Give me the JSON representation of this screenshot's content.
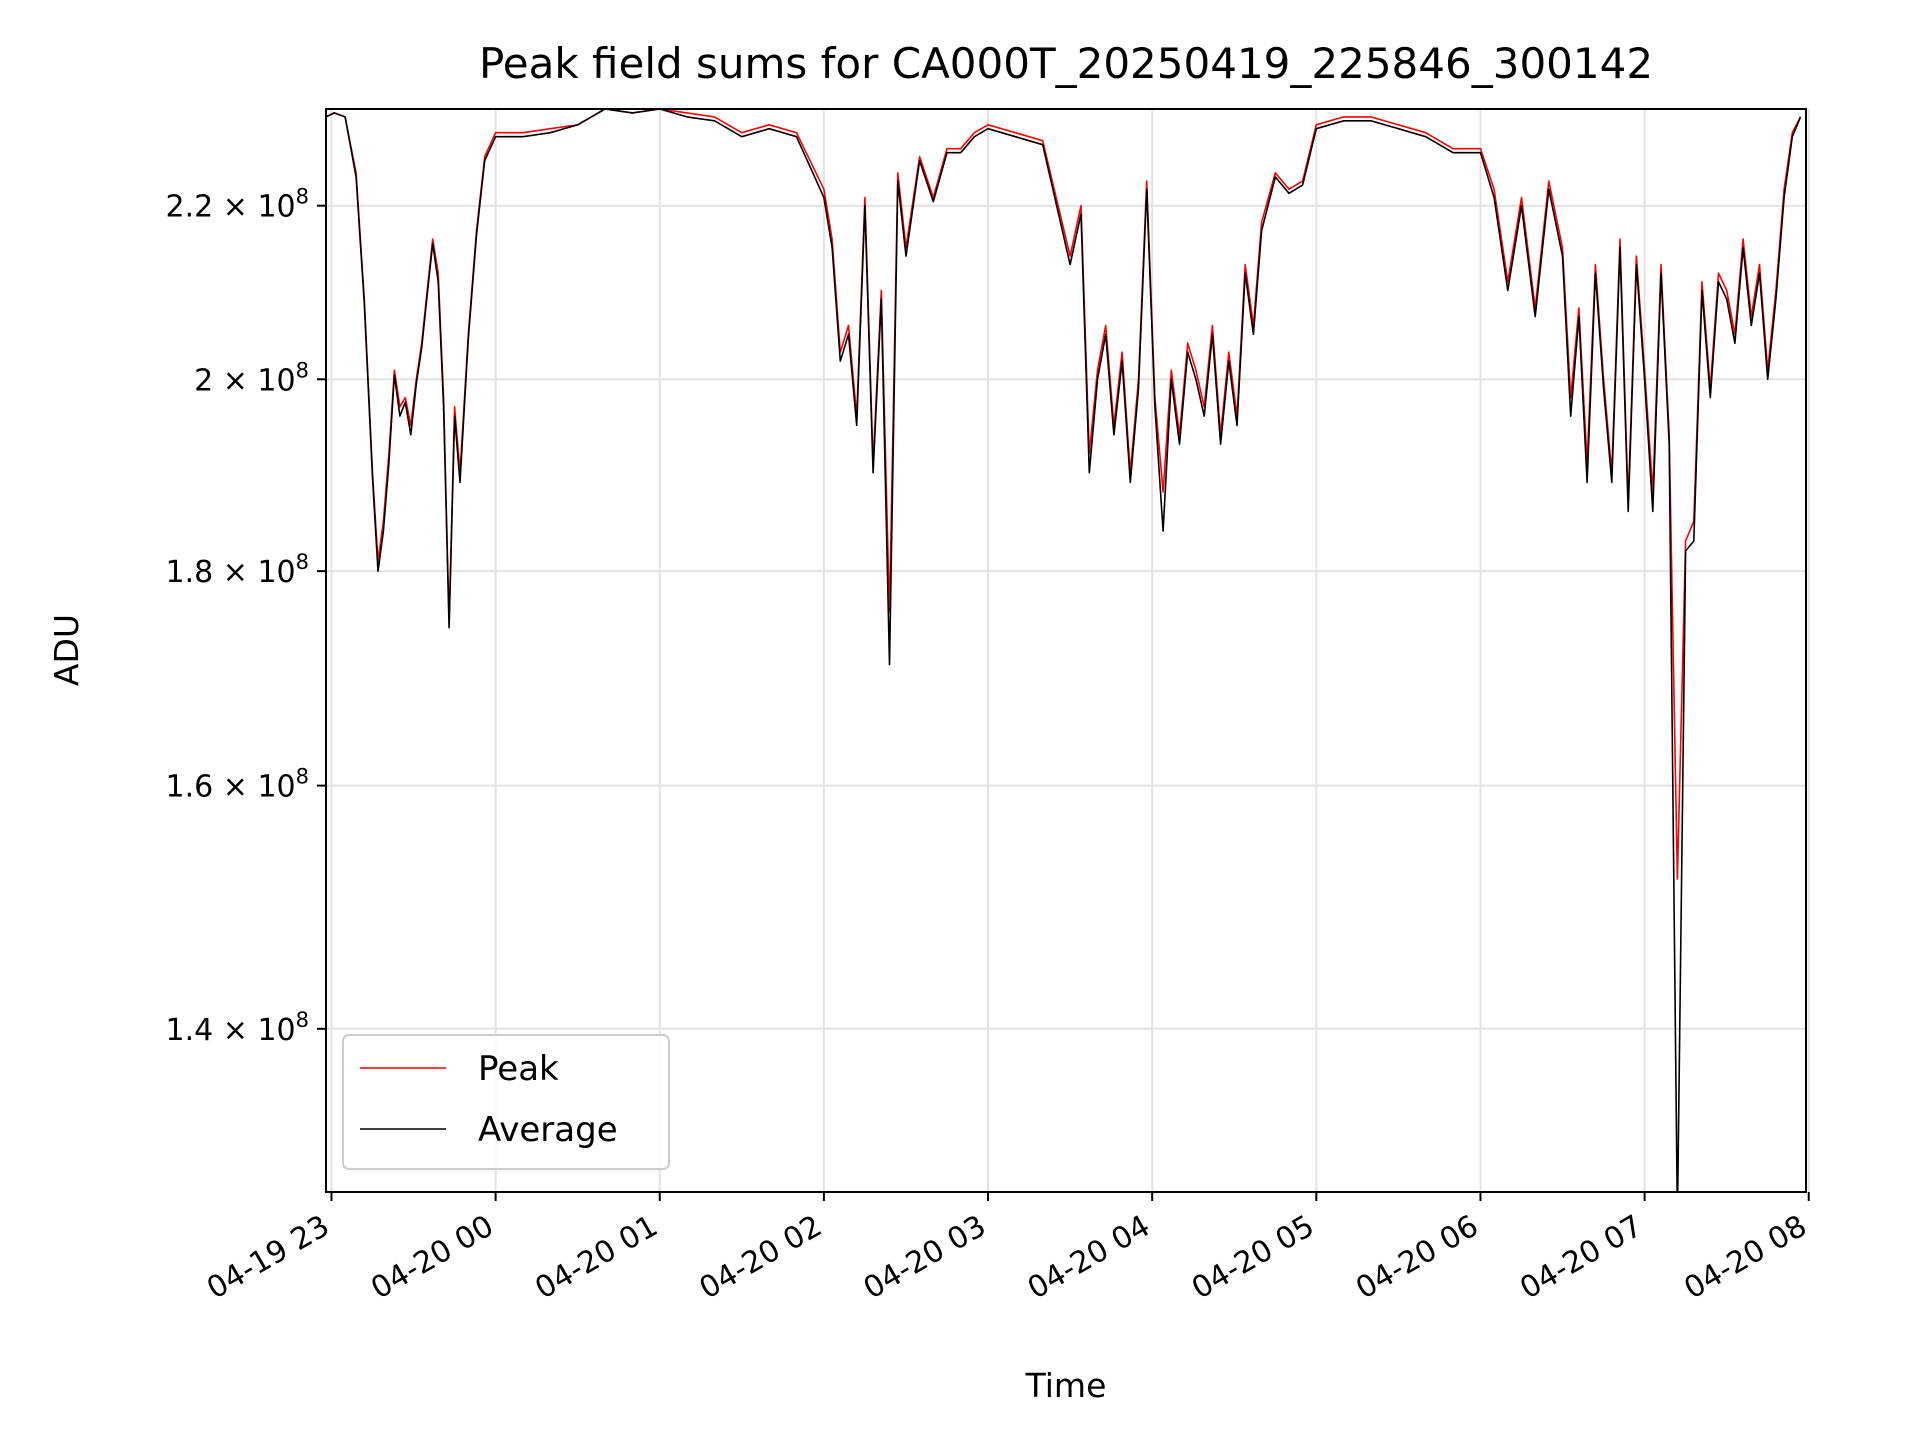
{
  "chart_data": {
    "type": "line",
    "title": "Peak field sums for CA000T_20250419_225846_300142",
    "xlabel": "Time",
    "ylabel": "ADU",
    "y_scale": "log",
    "ylim": [
      128000000,
      232000000
    ],
    "xlim": [
      "2025-04-19 22:58",
      "2025-04-20 07:59"
    ],
    "grid": true,
    "legend_position": "lower-left",
    "x_ticks": [
      {
        "value": "2025-04-19 23:00",
        "label": "04-19 23"
      },
      {
        "value": "2025-04-20 00:00",
        "label": "04-20 00"
      },
      {
        "value": "2025-04-20 01:00",
        "label": "04-20 01"
      },
      {
        "value": "2025-04-20 02:00",
        "label": "04-20 02"
      },
      {
        "value": "2025-04-20 03:00",
        "label": "04-20 03"
      },
      {
        "value": "2025-04-20 04:00",
        "label": "04-20 04"
      },
      {
        "value": "2025-04-20 05:00",
        "label": "04-20 05"
      },
      {
        "value": "2025-04-20 06:00",
        "label": "04-20 06"
      },
      {
        "value": "2025-04-20 07:00",
        "label": "04-20 07"
      },
      {
        "value": "2025-04-20 08:00",
        "label": "04-20 08"
      }
    ],
    "y_ticks": [
      {
        "value": 140000000,
        "mantissa": "1.4",
        "exp": "8"
      },
      {
        "value": 160000000,
        "mantissa": "1.6",
        "exp": "8"
      },
      {
        "value": 180000000,
        "mantissa": "1.8",
        "exp": "8"
      },
      {
        "value": 200000000,
        "mantissa": "2",
        "exp": "8"
      },
      {
        "value": 220000000,
        "mantissa": "2.2",
        "exp": "8"
      }
    ],
    "series": [
      {
        "name": "Peak",
        "color": "#ff0000",
        "x": [
          "2025-04-19 22:58",
          "2025-04-19 23:01",
          "2025-04-19 23:05",
          "2025-04-19 23:09",
          "2025-04-19 23:12",
          "2025-04-19 23:15",
          "2025-04-19 23:17",
          "2025-04-19 23:19",
          "2025-04-19 23:21",
          "2025-04-19 23:23",
          "2025-04-19 23:25",
          "2025-04-19 23:27",
          "2025-04-19 23:29",
          "2025-04-19 23:31",
          "2025-04-19 23:33",
          "2025-04-19 23:35",
          "2025-04-19 23:37",
          "2025-04-19 23:39",
          "2025-04-19 23:41",
          "2025-04-19 23:43",
          "2025-04-19 23:45",
          "2025-04-19 23:47",
          "2025-04-19 23:50",
          "2025-04-19 23:53",
          "2025-04-19 23:56",
          "2025-04-20 00:00",
          "2025-04-20 00:10",
          "2025-04-20 00:20",
          "2025-04-20 00:30",
          "2025-04-20 00:40",
          "2025-04-20 00:50",
          "2025-04-20 01:00",
          "2025-04-20 01:10",
          "2025-04-20 01:20",
          "2025-04-20 01:30",
          "2025-04-20 01:40",
          "2025-04-20 01:50",
          "2025-04-20 02:00",
          "2025-04-20 02:03",
          "2025-04-20 02:06",
          "2025-04-20 02:09",
          "2025-04-20 02:12",
          "2025-04-20 02:15",
          "2025-04-20 02:18",
          "2025-04-20 02:21",
          "2025-04-20 02:24",
          "2025-04-20 02:27",
          "2025-04-20 02:30",
          "2025-04-20 02:35",
          "2025-04-20 02:40",
          "2025-04-20 02:45",
          "2025-04-20 02:50",
          "2025-04-20 02:55",
          "2025-04-20 03:00",
          "2025-04-20 03:10",
          "2025-04-20 03:20",
          "2025-04-20 03:30",
          "2025-04-20 03:34",
          "2025-04-20 03:37",
          "2025-04-20 03:40",
          "2025-04-20 03:43",
          "2025-04-20 03:46",
          "2025-04-20 03:49",
          "2025-04-20 03:52",
          "2025-04-20 03:55",
          "2025-04-20 03:58",
          "2025-04-20 04:01",
          "2025-04-20 04:04",
          "2025-04-20 04:07",
          "2025-04-20 04:10",
          "2025-04-20 04:13",
          "2025-04-20 04:16",
          "2025-04-20 04:19",
          "2025-04-20 04:22",
          "2025-04-20 04:25",
          "2025-04-20 04:28",
          "2025-04-20 04:31",
          "2025-04-20 04:34",
          "2025-04-20 04:37",
          "2025-04-20 04:40",
          "2025-04-20 04:45",
          "2025-04-20 04:50",
          "2025-04-20 04:55",
          "2025-04-20 05:00",
          "2025-04-20 05:10",
          "2025-04-20 05:20",
          "2025-04-20 05:30",
          "2025-04-20 05:40",
          "2025-04-20 05:50",
          "2025-04-20 06:00",
          "2025-04-20 06:05",
          "2025-04-20 06:10",
          "2025-04-20 06:15",
          "2025-04-20 06:20",
          "2025-04-20 06:25",
          "2025-04-20 06:30",
          "2025-04-20 06:33",
          "2025-04-20 06:36",
          "2025-04-20 06:39",
          "2025-04-20 06:42",
          "2025-04-20 06:45",
          "2025-04-20 06:48",
          "2025-04-20 06:51",
          "2025-04-20 06:54",
          "2025-04-20 06:57",
          "2025-04-20 07:00",
          "2025-04-20 07:03",
          "2025-04-20 07:06",
          "2025-04-20 07:09",
          "2025-04-20 07:12",
          "2025-04-20 07:15",
          "2025-04-20 07:18",
          "2025-04-20 07:21",
          "2025-04-20 07:24",
          "2025-04-20 07:27",
          "2025-04-20 07:30",
          "2025-04-20 07:33",
          "2025-04-20 07:36",
          "2025-04-20 07:39",
          "2025-04-20 07:42",
          "2025-04-20 07:45",
          "2025-04-20 07:48",
          "2025-04-20 07:51",
          "2025-04-20 07:54",
          "2025-04-20 07:57"
        ],
        "values": [
          231000000,
          231500000,
          231000000,
          224000000,
          209000000,
          190000000,
          181000000,
          185000000,
          192000000,
          201000000,
          197000000,
          198000000,
          195000000,
          200000000,
          204000000,
          210000000,
          216000000,
          212000000,
          198000000,
          175000000,
          197000000,
          190000000,
          205000000,
          217000000,
          226000000,
          229000000,
          229000000,
          229500000,
          230000000,
          232000000,
          231500000,
          232000000,
          231500000,
          231000000,
          229000000,
          230000000,
          229000000,
          222000000,
          216000000,
          203000000,
          206000000,
          196000000,
          221000000,
          191000000,
          210000000,
          176000000,
          224000000,
          215000000,
          226000000,
          221000000,
          227000000,
          227000000,
          229000000,
          230000000,
          229000000,
          228000000,
          214000000,
          220000000,
          192000000,
          201000000,
          206000000,
          195000000,
          203000000,
          190000000,
          200000000,
          223000000,
          198000000,
          188000000,
          201000000,
          194000000,
          204000000,
          201000000,
          197000000,
          206000000,
          194000000,
          203000000,
          196000000,
          213000000,
          206000000,
          218000000,
          224000000,
          222000000,
          223000000,
          230000000,
          231000000,
          231000000,
          230000000,
          229000000,
          227000000,
          227000000,
          222000000,
          211000000,
          221000000,
          208000000,
          223000000,
          215000000,
          198000000,
          208000000,
          191000000,
          213000000,
          200000000,
          190000000,
          216000000,
          187000000,
          214000000,
          201000000,
          188000000,
          213000000,
          194000000,
          152000000,
          183000000,
          185000000,
          211000000,
          199000000,
          212000000,
          210000000,
          205000000,
          216000000,
          207000000,
          213000000,
          201000000,
          210000000,
          222000000,
          229000000,
          231000000
        ]
      },
      {
        "name": "Average",
        "color": "#000000",
        "x": [
          "2025-04-19 22:58",
          "2025-04-19 23:01",
          "2025-04-19 23:05",
          "2025-04-19 23:09",
          "2025-04-19 23:12",
          "2025-04-19 23:15",
          "2025-04-19 23:17",
          "2025-04-19 23:19",
          "2025-04-19 23:21",
          "2025-04-19 23:23",
          "2025-04-19 23:25",
          "2025-04-19 23:27",
          "2025-04-19 23:29",
          "2025-04-19 23:31",
          "2025-04-19 23:33",
          "2025-04-19 23:35",
          "2025-04-19 23:37",
          "2025-04-19 23:39",
          "2025-04-19 23:41",
          "2025-04-19 23:43",
          "2025-04-19 23:45",
          "2025-04-19 23:47",
          "2025-04-19 23:50",
          "2025-04-19 23:53",
          "2025-04-19 23:56",
          "2025-04-20 00:00",
          "2025-04-20 00:10",
          "2025-04-20 00:20",
          "2025-04-20 00:30",
          "2025-04-20 00:40",
          "2025-04-20 00:50",
          "2025-04-20 01:00",
          "2025-04-20 01:10",
          "2025-04-20 01:20",
          "2025-04-20 01:30",
          "2025-04-20 01:40",
          "2025-04-20 01:50",
          "2025-04-20 02:00",
          "2025-04-20 02:03",
          "2025-04-20 02:06",
          "2025-04-20 02:09",
          "2025-04-20 02:12",
          "2025-04-20 02:15",
          "2025-04-20 02:18",
          "2025-04-20 02:21",
          "2025-04-20 02:24",
          "2025-04-20 02:27",
          "2025-04-20 02:30",
          "2025-04-20 02:35",
          "2025-04-20 02:40",
          "2025-04-20 02:45",
          "2025-04-20 02:50",
          "2025-04-20 02:55",
          "2025-04-20 03:00",
          "2025-04-20 03:10",
          "2025-04-20 03:20",
          "2025-04-20 03:30",
          "2025-04-20 03:34",
          "2025-04-20 03:37",
          "2025-04-20 03:40",
          "2025-04-20 03:43",
          "2025-04-20 03:46",
          "2025-04-20 03:49",
          "2025-04-20 03:52",
          "2025-04-20 03:55",
          "2025-04-20 03:58",
          "2025-04-20 04:01",
          "2025-04-20 04:04",
          "2025-04-20 04:07",
          "2025-04-20 04:10",
          "2025-04-20 04:13",
          "2025-04-20 04:16",
          "2025-04-20 04:19",
          "2025-04-20 04:22",
          "2025-04-20 04:25",
          "2025-04-20 04:28",
          "2025-04-20 04:31",
          "2025-04-20 04:34",
          "2025-04-20 04:37",
          "2025-04-20 04:40",
          "2025-04-20 04:45",
          "2025-04-20 04:50",
          "2025-04-20 04:55",
          "2025-04-20 05:00",
          "2025-04-20 05:10",
          "2025-04-20 05:20",
          "2025-04-20 05:30",
          "2025-04-20 05:40",
          "2025-04-20 05:50",
          "2025-04-20 06:00",
          "2025-04-20 06:05",
          "2025-04-20 06:10",
          "2025-04-20 06:15",
          "2025-04-20 06:20",
          "2025-04-20 06:25",
          "2025-04-20 06:30",
          "2025-04-20 06:33",
          "2025-04-20 06:36",
          "2025-04-20 06:39",
          "2025-04-20 06:42",
          "2025-04-20 06:45",
          "2025-04-20 06:48",
          "2025-04-20 06:51",
          "2025-04-20 06:54",
          "2025-04-20 06:57",
          "2025-04-20 07:00",
          "2025-04-20 07:03",
          "2025-04-20 07:06",
          "2025-04-20 07:09",
          "2025-04-20 07:12",
          "2025-04-20 07:15",
          "2025-04-20 07:18",
          "2025-04-20 07:21",
          "2025-04-20 07:24",
          "2025-04-20 07:27",
          "2025-04-20 07:30",
          "2025-04-20 07:33",
          "2025-04-20 07:36",
          "2025-04-20 07:39",
          "2025-04-20 07:42",
          "2025-04-20 07:45",
          "2025-04-20 07:48",
          "2025-04-20 07:51",
          "2025-04-20 07:54",
          "2025-04-20 07:57"
        ],
        "values": [
          231000000,
          231500000,
          231000000,
          223500000,
          208500000,
          189500000,
          180000000,
          184000000,
          191000000,
          200500000,
          196000000,
          197500000,
          194000000,
          199500000,
          203500000,
          209500000,
          215500000,
          211000000,
          197000000,
          174500000,
          196000000,
          189000000,
          204500000,
          216500000,
          225500000,
          228500000,
          228500000,
          229000000,
          230000000,
          232000000,
          231500000,
          232000000,
          231000000,
          230500000,
          228500000,
          229500000,
          228500000,
          221000000,
          215000000,
          202000000,
          205000000,
          195000000,
          220000000,
          190000000,
          209000000,
          171000000,
          223000000,
          214000000,
          225500000,
          220500000,
          226500000,
          226500000,
          228500000,
          229500000,
          228500000,
          227500000,
          213000000,
          219000000,
          190000000,
          200000000,
          205000000,
          194000000,
          202000000,
          189000000,
          199000000,
          222000000,
          197000000,
          184000000,
          200000000,
          193000000,
          203000000,
          200000000,
          196000000,
          205000000,
          193000000,
          202000000,
          195000000,
          212000000,
          205000000,
          217000000,
          223500000,
          221500000,
          222500000,
          229500000,
          230500000,
          230500000,
          229500000,
          228500000,
          226500000,
          226500000,
          221000000,
          210000000,
          220000000,
          207000000,
          222000000,
          214000000,
          196000000,
          207000000,
          189000000,
          212000000,
          199000000,
          189000000,
          215000000,
          186000000,
          213000000,
          200000000,
          186000000,
          212000000,
          193000000,
          126000000,
          182000000,
          183000000,
          210000000,
          198000000,
          211000000,
          209000000,
          204000000,
          215000000,
          206000000,
          212000000,
          200000000,
          209000000,
          221000000,
          228500000,
          231000000
        ]
      }
    ]
  }
}
